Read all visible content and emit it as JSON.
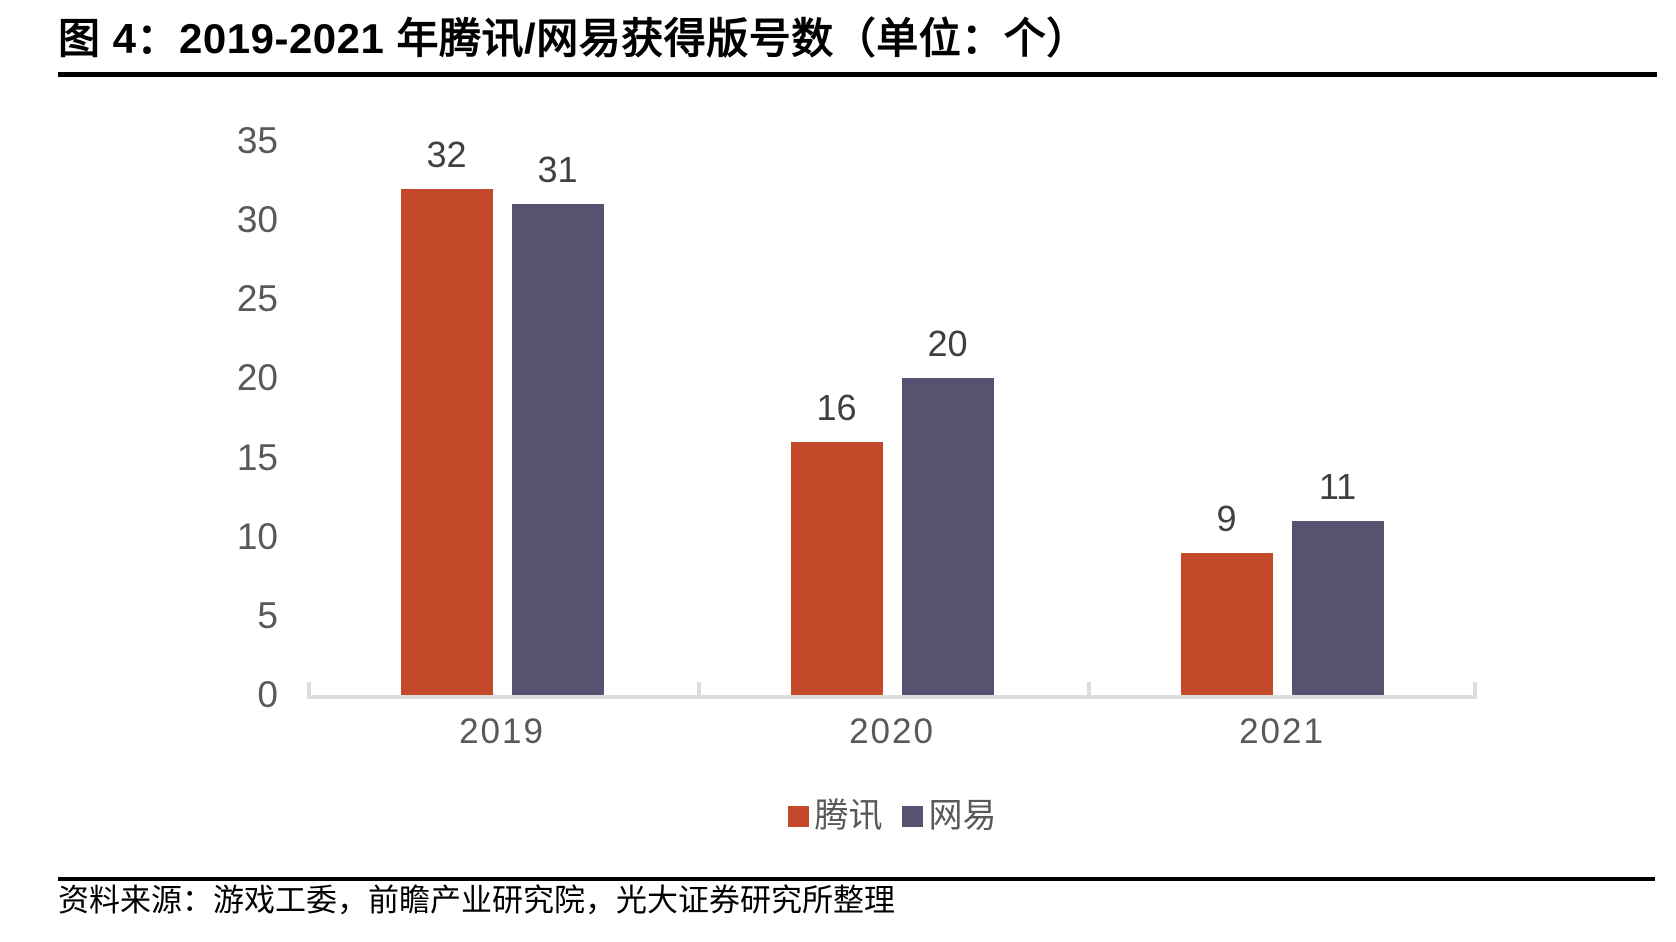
{
  "header": {
    "title": "图 4：2019-2021 年腾讯/网易获得版号数（单位：个）"
  },
  "chart_data": {
    "type": "bar",
    "title": "2019-2021 年腾讯/网易获得版号数",
    "unit": "个",
    "categories": [
      "2019",
      "2020",
      "2021"
    ],
    "series": [
      {
        "name": "腾讯",
        "color": "#C4492A",
        "values": [
          32,
          16,
          9
        ]
      },
      {
        "name": "网易",
        "color": "#575270",
        "values": [
          31,
          20,
          11
        ]
      }
    ],
    "ylim": [
      0,
      35
    ],
    "yticks": [
      0,
      5,
      10,
      15,
      20,
      25,
      30,
      35
    ],
    "grid": false,
    "legend_position": "bottom",
    "axis_color": "#DCDCDC",
    "label_color": "#595959",
    "data_label_color": "#404040"
  },
  "footer": {
    "source": "资料来源：游戏工委，前瞻产业研究院，光大证券研究所整理"
  }
}
